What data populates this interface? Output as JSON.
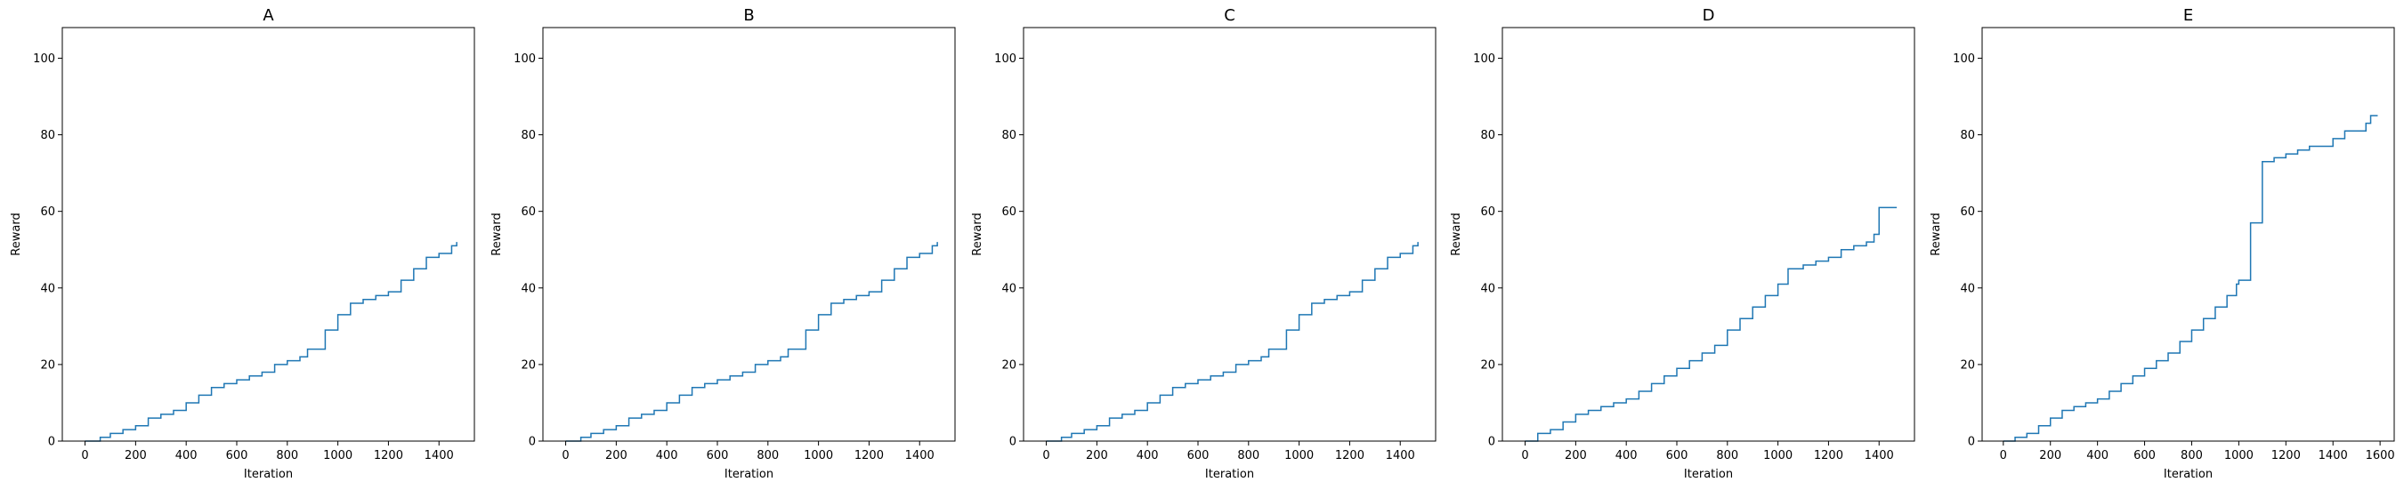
{
  "chart_data": [
    {
      "type": "line",
      "title": "A",
      "xlabel": "Iteration",
      "ylabel": "Reward",
      "xlim": [
        -90,
        1540
      ],
      "ylim": [
        0,
        108
      ],
      "xticks": [
        0,
        200,
        400,
        600,
        800,
        1000,
        1200,
        1400
      ],
      "yticks": [
        0,
        20,
        40,
        60,
        80,
        100
      ],
      "grid": false,
      "color": "#1f77b4",
      "series": [
        {
          "x": [
            0,
            60,
            100,
            150,
            200,
            250,
            300,
            350,
            400,
            450,
            500,
            550,
            600,
            650,
            700,
            750,
            800,
            850,
            880,
            950,
            1000,
            1050,
            1100,
            1150,
            1200,
            1250,
            1300,
            1350,
            1400,
            1450,
            1470
          ],
          "y": [
            0,
            1,
            2,
            3,
            4,
            6,
            7,
            8,
            10,
            12,
            14,
            15,
            16,
            17,
            18,
            20,
            21,
            22,
            24,
            29,
            33,
            36,
            37,
            38,
            39,
            42,
            45,
            48,
            49,
            51,
            52
          ]
        }
      ]
    },
    {
      "type": "line",
      "title": "B",
      "xlabel": "Iteration",
      "ylabel": "Reward",
      "xlim": [
        -90,
        1540
      ],
      "ylim": [
        0,
        108
      ],
      "xticks": [
        0,
        200,
        400,
        600,
        800,
        1000,
        1200,
        1400
      ],
      "yticks": [
        0,
        20,
        40,
        60,
        80,
        100
      ],
      "grid": false,
      "color": "#1f77b4",
      "series": [
        {
          "x": [
            0,
            60,
            100,
            150,
            200,
            250,
            300,
            350,
            400,
            450,
            500,
            550,
            600,
            650,
            700,
            750,
            800,
            850,
            880,
            950,
            1000,
            1050,
            1100,
            1150,
            1200,
            1250,
            1300,
            1350,
            1400,
            1450,
            1470
          ],
          "y": [
            0,
            1,
            2,
            3,
            4,
            6,
            7,
            8,
            10,
            12,
            14,
            15,
            16,
            17,
            18,
            20,
            21,
            22,
            24,
            29,
            33,
            36,
            37,
            38,
            39,
            42,
            45,
            48,
            49,
            51,
            52
          ]
        }
      ]
    },
    {
      "type": "line",
      "title": "C",
      "xlabel": "Iteration",
      "ylabel": "Reward",
      "xlim": [
        -90,
        1540
      ],
      "ylim": [
        0,
        108
      ],
      "xticks": [
        0,
        200,
        400,
        600,
        800,
        1000,
        1200,
        1400
      ],
      "yticks": [
        0,
        20,
        40,
        60,
        80,
        100
      ],
      "grid": false,
      "color": "#1f77b4",
      "series": [
        {
          "x": [
            0,
            60,
            100,
            150,
            200,
            250,
            300,
            350,
            400,
            450,
            500,
            550,
            600,
            650,
            700,
            750,
            800,
            850,
            880,
            950,
            1000,
            1050,
            1100,
            1150,
            1200,
            1250,
            1300,
            1350,
            1400,
            1450,
            1470
          ],
          "y": [
            0,
            1,
            2,
            3,
            4,
            6,
            7,
            8,
            10,
            12,
            14,
            15,
            16,
            17,
            18,
            20,
            21,
            22,
            24,
            29,
            33,
            36,
            37,
            38,
            39,
            42,
            45,
            48,
            49,
            51,
            52
          ]
        }
      ]
    },
    {
      "type": "line",
      "title": "D",
      "xlabel": "Iteration",
      "ylabel": "Reward",
      "xlim": [
        -90,
        1540
      ],
      "ylim": [
        0,
        108
      ],
      "xticks": [
        0,
        200,
        400,
        600,
        800,
        1000,
        1200,
        1400
      ],
      "yticks": [
        0,
        20,
        40,
        60,
        80,
        100
      ],
      "grid": false,
      "color": "#1f77b4",
      "series": [
        {
          "x": [
            0,
            50,
            100,
            150,
            200,
            250,
            300,
            350,
            400,
            450,
            500,
            550,
            600,
            650,
            700,
            750,
            800,
            850,
            900,
            950,
            1000,
            1040,
            1100,
            1150,
            1200,
            1250,
            1300,
            1350,
            1380,
            1400,
            1470
          ],
          "y": [
            0,
            2,
            3,
            5,
            7,
            8,
            9,
            10,
            11,
            13,
            15,
            17,
            19,
            21,
            23,
            25,
            29,
            32,
            35,
            38,
            41,
            45,
            46,
            47,
            48,
            50,
            51,
            52,
            54,
            61,
            61
          ]
        }
      ]
    },
    {
      "type": "line",
      "title": "E",
      "xlabel": "Iteration",
      "ylabel": "Reward",
      "xlim": [
        -90,
        1660
      ],
      "ylim": [
        0,
        108
      ],
      "xticks": [
        0,
        200,
        400,
        600,
        800,
        1000,
        1200,
        1400,
        1600
      ],
      "yticks": [
        0,
        20,
        40,
        60,
        80,
        100
      ],
      "grid": false,
      "color": "#1f77b4",
      "series": [
        {
          "x": [
            0,
            50,
            100,
            150,
            200,
            250,
            300,
            350,
            400,
            450,
            500,
            550,
            600,
            650,
            700,
            750,
            800,
            850,
            900,
            950,
            990,
            1000,
            1050,
            1100,
            1150,
            1200,
            1250,
            1300,
            1350,
            1400,
            1450,
            1500,
            1540,
            1560,
            1590
          ],
          "y": [
            0,
            1,
            2,
            4,
            6,
            8,
            9,
            10,
            11,
            13,
            15,
            17,
            19,
            21,
            23,
            26,
            29,
            32,
            35,
            38,
            41,
            42,
            57,
            73,
            74,
            75,
            76,
            77,
            77,
            79,
            81,
            81,
            83,
            85,
            85
          ]
        }
      ]
    }
  ]
}
